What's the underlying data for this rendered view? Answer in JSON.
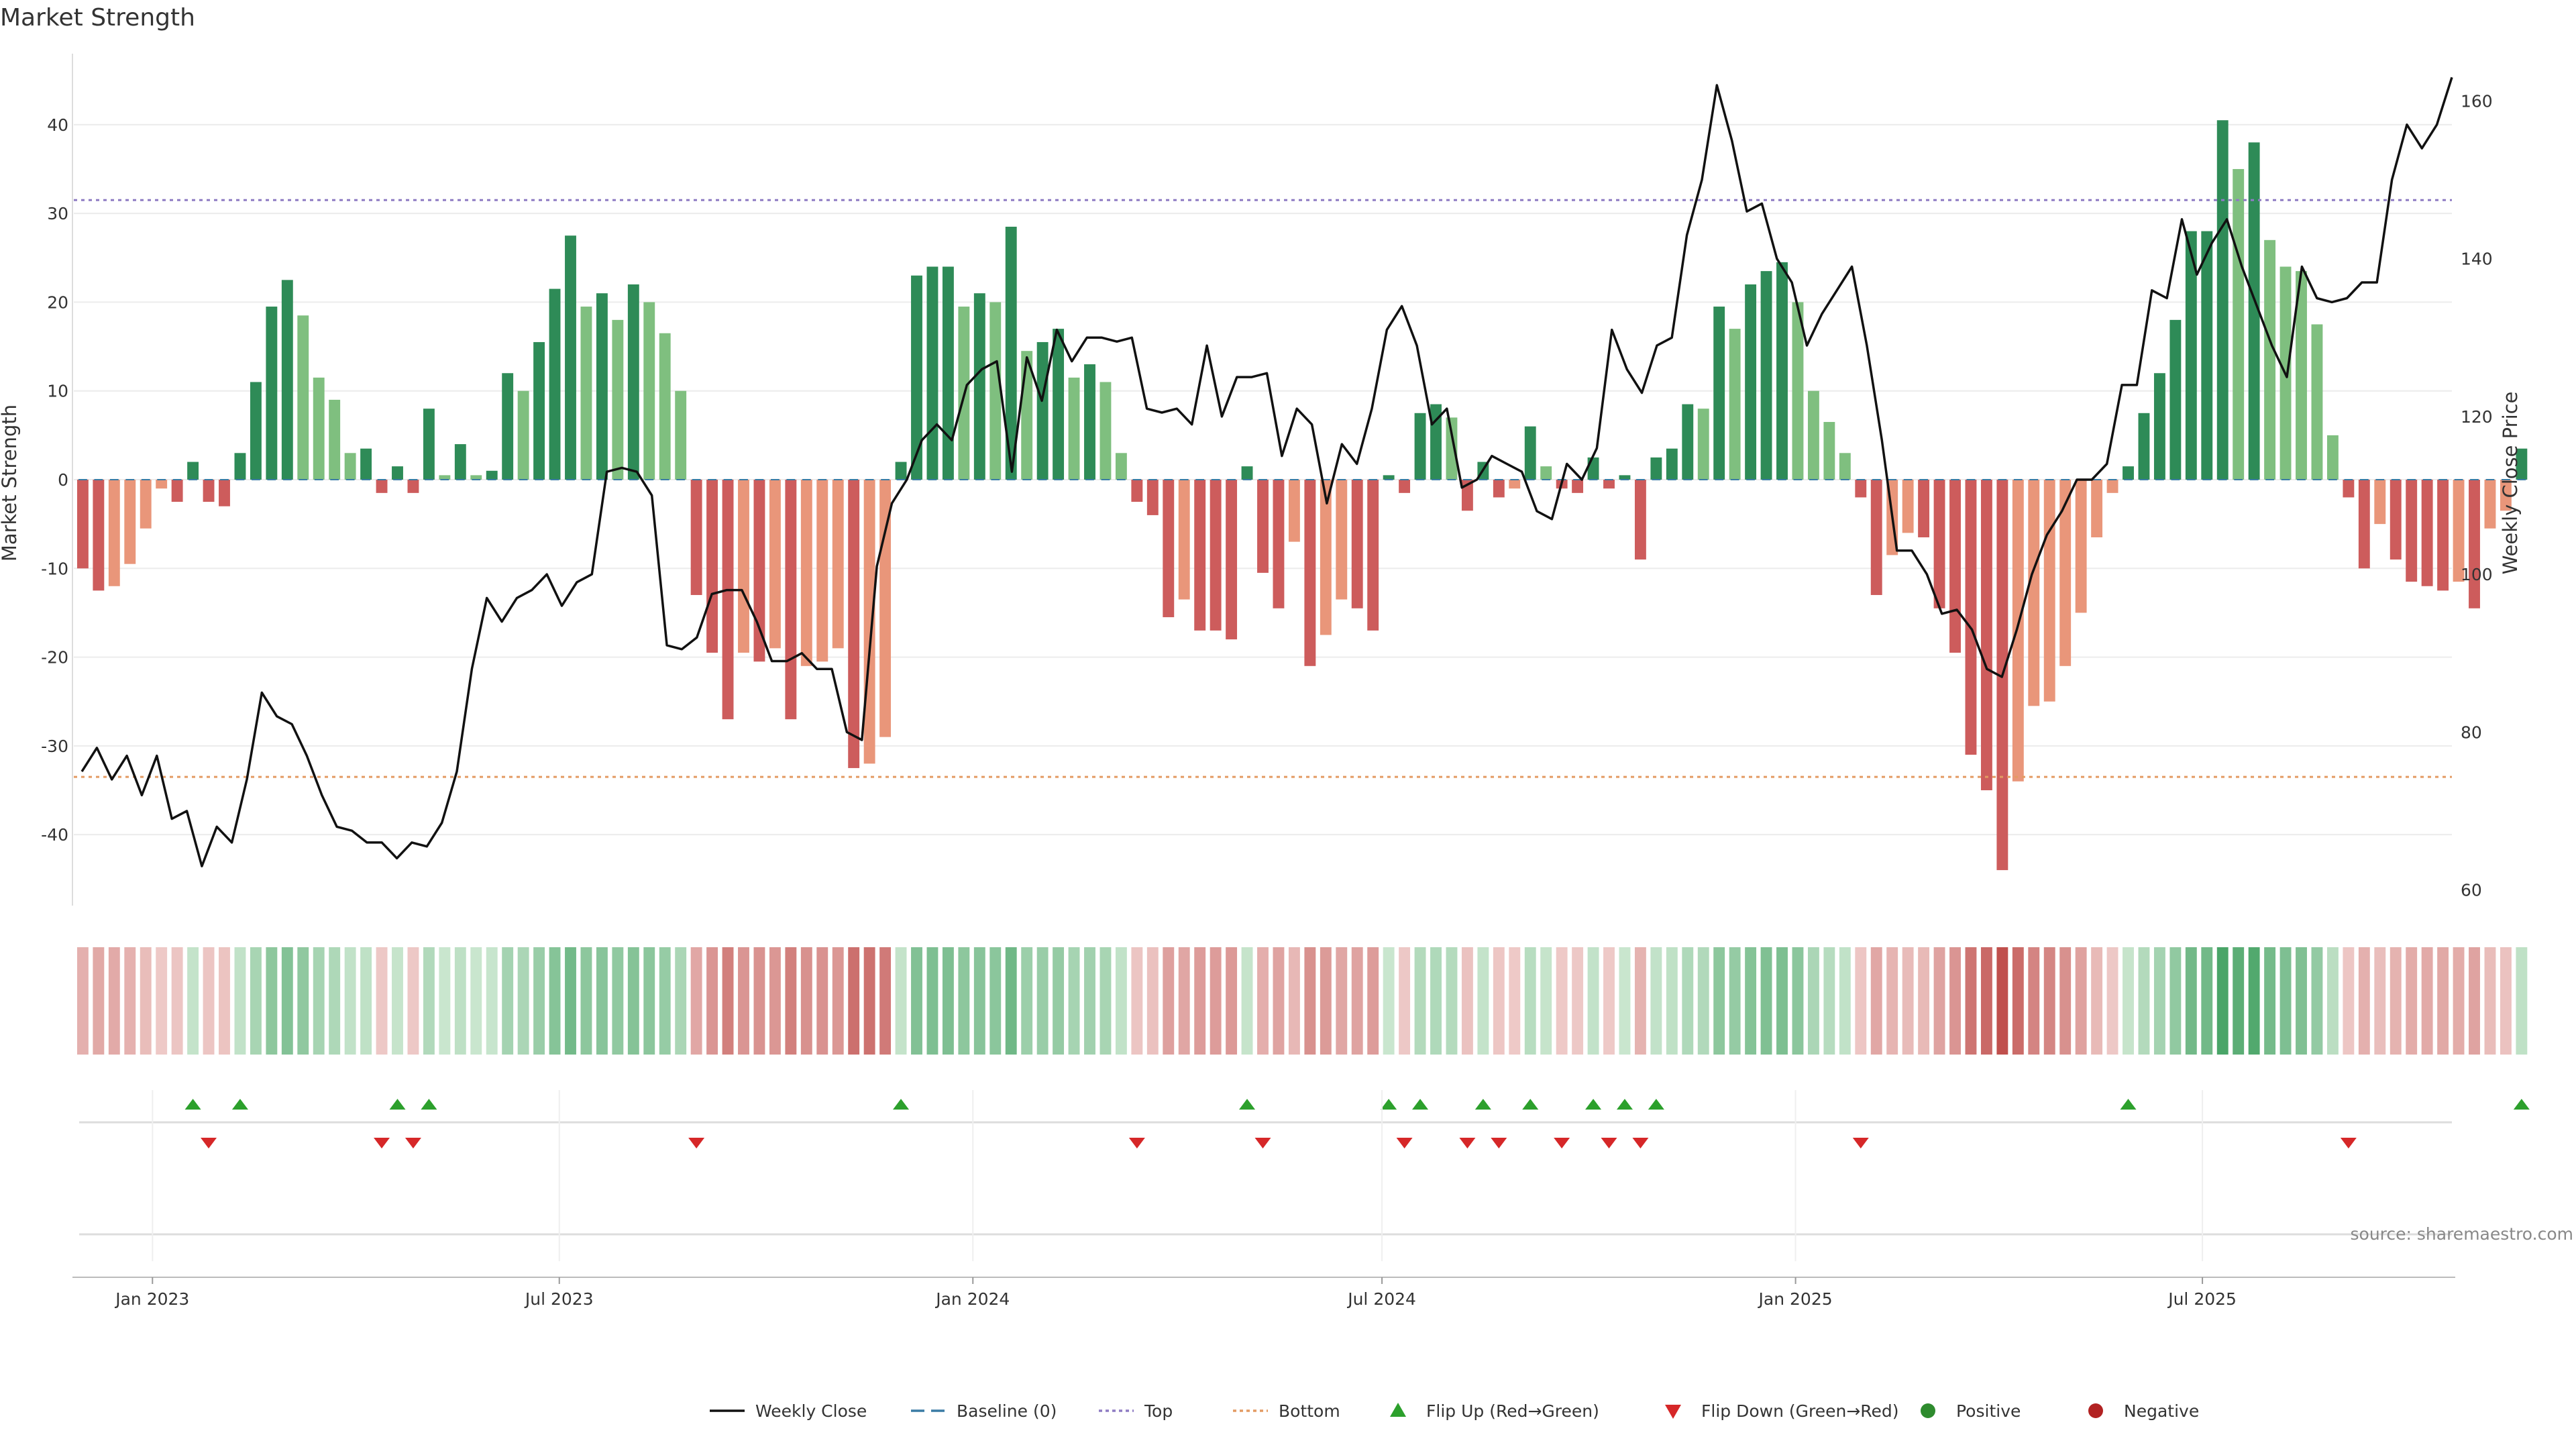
{
  "chart_data": {
    "type": "bar",
    "title": "Market Strength",
    "source": "source: sharemaestro.com",
    "ylabel_left": "Market Strength",
    "ylabel_right": "Weekly Close Price",
    "ylim_left": [
      -48,
      48
    ],
    "ylim_right": [
      58,
      166
    ],
    "y_ticks_left": [
      -40,
      -30,
      -20,
      -10,
      0,
      10,
      20,
      30,
      40
    ],
    "y_ticks_right": [
      60,
      80,
      100,
      120,
      140,
      160
    ],
    "x_range": [
      "2022-11-27",
      "2025-10-20"
    ],
    "x_ticks": [
      {
        "date": "2023-01-01",
        "label": "Jan 2023"
      },
      {
        "date": "2023-07-01",
        "label": "Jul 2023"
      },
      {
        "date": "2024-01-01",
        "label": "Jan 2024"
      },
      {
        "date": "2024-07-01",
        "label": "Jul 2024"
      },
      {
        "date": "2025-01-01",
        "label": "Jan 2025"
      },
      {
        "date": "2025-07-01",
        "label": "Jul 2025"
      }
    ],
    "week_start": "2022-12-01",
    "top_level": 31.5,
    "bottom_level": -33.5,
    "strength": [
      -10,
      -12.5,
      -12,
      -9.5,
      -5.5,
      -1,
      -2.5,
      2,
      -2.5,
      -3,
      3,
      11,
      19.5,
      22.5,
      18.5,
      11.5,
      9,
      3,
      3.5,
      -1.5,
      1.5,
      -1.5,
      8,
      0.5,
      4,
      0.5,
      1,
      12,
      10,
      15.5,
      21.5,
      27.5,
      19.5,
      21,
      18,
      22,
      20,
      16.5,
      10,
      -13,
      -19.5,
      -27,
      -19.5,
      -20.5,
      -19,
      -27,
      -21,
      -20.5,
      -19,
      -32.5,
      -32,
      -29,
      2,
      23,
      24,
      24,
      19.5,
      21,
      20,
      28.5,
      14.5,
      15.5,
      17,
      11.5,
      13,
      11,
      3,
      -2.5,
      -4,
      -15.5,
      -13.5,
      -17,
      -17,
      -18,
      1.5,
      -10.5,
      -14.5,
      -7,
      -21,
      -17.5,
      -13.5,
      -14.5,
      -17,
      0.5,
      -1.5,
      7.5,
      8.5,
      7,
      -3.5,
      2,
      -2,
      -1,
      6,
      1.5,
      -1,
      -1.5,
      2.5,
      -1,
      0.5,
      -9,
      2.5,
      3.5,
      8.5,
      8,
      19.5,
      17,
      22,
      23.5,
      24.5,
      20,
      10,
      6.5,
      3,
      -2,
      -13,
      -8.5,
      -6,
      -6.5,
      -14.5,
      -19.5,
      -31,
      -35,
      -44,
      -34,
      -25.5,
      -25,
      -21,
      -15,
      -6.5,
      -1.5,
      1.5,
      7.5,
      12,
      18,
      28,
      28,
      40.5,
      35,
      38,
      27,
      24,
      23.5,
      17.5,
      5,
      -2,
      -10,
      -5,
      -9,
      -11.5,
      -12,
      -12.5,
      -11.5,
      -14.5,
      -5.5,
      -3.5,
      3.5
    ],
    "close": [
      75,
      78,
      74,
      77,
      72,
      77,
      69,
      70,
      63,
      68,
      66,
      74,
      85,
      82,
      81,
      77,
      72,
      68,
      67.5,
      66,
      66,
      64,
      66,
      65.5,
      68.5,
      75,
      88,
      97,
      94,
      97,
      98,
      100,
      96,
      99,
      100,
      113,
      113.5,
      113,
      110,
      91,
      90.5,
      92,
      97.5,
      98,
      98,
      94,
      89,
      89,
      90,
      88,
      88,
      80,
      79,
      101,
      109,
      112,
      117,
      119,
      117,
      124,
      126,
      127,
      113,
      127.5,
      122,
      131,
      127,
      130,
      130,
      129.5,
      130,
      121,
      120.5,
      121,
      119,
      129,
      120,
      125,
      125,
      125.5,
      115,
      121,
      119,
      109,
      116.5,
      114,
      121,
      131,
      134,
      129,
      119,
      121,
      111,
      112,
      115,
      114,
      113,
      108,
      107,
      114,
      112,
      116,
      131,
      126,
      123,
      129,
      130,
      143,
      150,
      162,
      155,
      146,
      147,
      140,
      137,
      129,
      133,
      136,
      139,
      129,
      117,
      103,
      103,
      100,
      95,
      95.5,
      93,
      88,
      87,
      93,
      100,
      105,
      108,
      112,
      112,
      114,
      124,
      124,
      136,
      135,
      145,
      138,
      142,
      145,
      139,
      134,
      129,
      125,
      139,
      135,
      134.5,
      135,
      137,
      137,
      150,
      157,
      154,
      157,
      163
    ]
  },
  "legend": [
    {
      "label": "Weekly Close",
      "color": "#111111",
      "kind": "line-solid"
    },
    {
      "label": "Baseline (0)",
      "color": "#3a7ca5",
      "kind": "line-dash"
    },
    {
      "label": "Top",
      "color": "#8e7cc3",
      "kind": "line-dot"
    },
    {
      "label": "Bottom",
      "color": "#e39b63",
      "kind": "line-dot"
    },
    {
      "label": "Flip Up (Red→Green)",
      "color": "#2ca02c",
      "kind": "tri-up"
    },
    {
      "label": "Flip Down (Green→Red)",
      "color": "#d62728",
      "kind": "tri-down"
    },
    {
      "label": "Positive",
      "color": "#2e8b2e",
      "kind": "dot"
    },
    {
      "label": "Negative",
      "color": "#b22222",
      "kind": "dot"
    }
  ],
  "colors": {
    "pos_strong": "#2e8b57",
    "pos_light": "#7fbf7f",
    "neg_strong": "#cd5c5c",
    "neg_light": "#e9967a",
    "price_line": "#111111",
    "top_line": "#8e7cc3",
    "bottom_line": "#e39b63",
    "flip_up": "#2ca02c",
    "flip_down": "#d62728",
    "grid": "#ececec"
  }
}
